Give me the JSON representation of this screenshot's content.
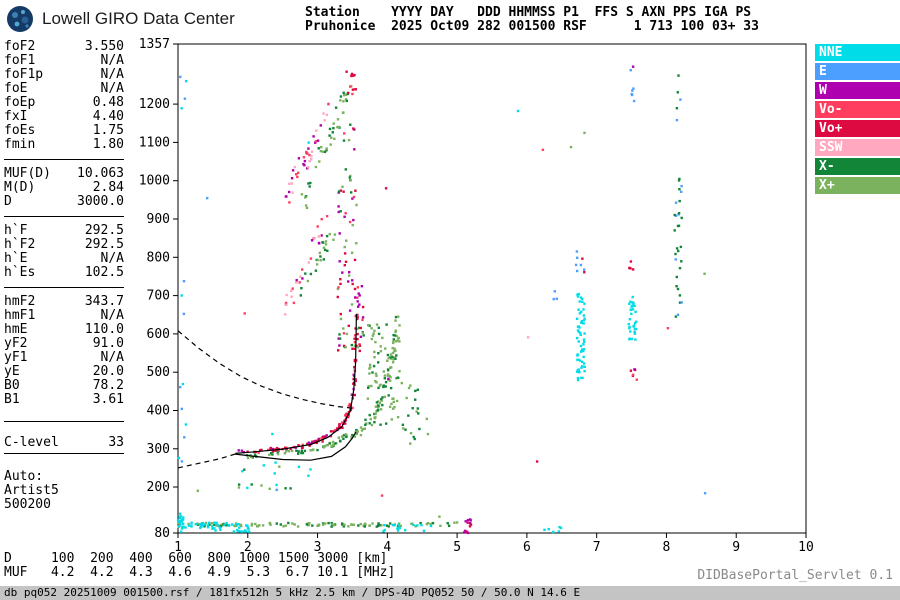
{
  "header": {
    "brand": "Lowell GIRO Data Center",
    "station_line1": "Station    YYYY DAY   DDD HHMMSS P1  FFS S AXN PPS IGA PS",
    "station_line2": "Pruhonice  2025 Oct09 282 001500 RSF      1 713 100 03+ 33"
  },
  "parameters": {
    "groups": [
      {
        "rows": [
          {
            "label": "foF2",
            "value": "3.550"
          },
          {
            "label": "foF1",
            "value": "N/A"
          },
          {
            "label": "foF1p",
            "value": "N/A"
          },
          {
            "label": "foE",
            "value": "N/A"
          },
          {
            "label": "foEp",
            "value": "0.48"
          },
          {
            "label": "fxI",
            "value": "4.40"
          },
          {
            "label": "foEs",
            "value": "1.75"
          },
          {
            "label": "fmin",
            "value": "1.80"
          }
        ]
      },
      {
        "rows": [
          {
            "label": "MUF(D)",
            "value": "10.063"
          },
          {
            "label": "M(D)",
            "value": "2.84"
          },
          {
            "label": "D",
            "value": "3000.0"
          }
        ]
      },
      {
        "rows": [
          {
            "label": "h`F",
            "value": "292.5"
          },
          {
            "label": "h`F2",
            "value": "292.5"
          },
          {
            "label": "h`E",
            "value": "N/A"
          },
          {
            "label": "h`Es",
            "value": "102.5"
          }
        ]
      },
      {
        "rows": [
          {
            "label": "hmF2",
            "value": "343.7"
          },
          {
            "label": "hmF1",
            "value": "N/A"
          },
          {
            "label": "hmE",
            "value": "110.0"
          },
          {
            "label": "yF2",
            "value": "91.0"
          },
          {
            "label": "yF1",
            "value": "N/A"
          },
          {
            "label": "yE",
            "value": "20.0"
          },
          {
            "label": "B0",
            "value": "78.2"
          },
          {
            "label": "B1",
            "value": "3.61"
          }
        ]
      },
      {
        "rows": [
          {
            "label": "C-level",
            "value": "33"
          }
        ],
        "bottom_line": true
      }
    ],
    "auto_block": [
      "Auto:",
      "Artist5",
      "500200"
    ]
  },
  "footer": {
    "d_row": "D     100  200  400  600  800 1000 1500 3000 [km]",
    "muf_row": "MUF   4.2  4.2  4.3  4.6  4.9  5.3  6.7 10.1 [MHz]",
    "servlet": "DIDBasePortal_Servlet 0.1",
    "status": "db pq052 20251009 001500.rsf / 181fx512h 5 kHz 2.5 km / DPS-4D PQ052 50 / 50.0 N 14.6 E"
  },
  "chart_data": {
    "type": "scatter",
    "title": "",
    "xlabel": "[MHz]",
    "ylabel": "[km]",
    "xlim": [
      1,
      10
    ],
    "ylim": [
      80,
      1357
    ],
    "x_ticks": [
      1,
      2,
      3,
      4,
      5,
      6,
      7,
      8,
      9,
      10
    ],
    "y_tick_labels": [
      1357,
      1200,
      1100,
      1000,
      900,
      800,
      700,
      600,
      500,
      400,
      300,
      200,
      80
    ],
    "grid": false,
    "legend_position": "top-right",
    "seed": 7,
    "colors": {
      "NNE": "#00DCE8",
      "E": "#4D9FFF",
      "W": "#AE00AE",
      "Vo-": "#FF3D5E",
      "Vo+": "#DC0A41",
      "SSW": "#FFA8C0",
      "X-": "#128539",
      "X+": "#7BB25E"
    },
    "legend": [
      "NNE",
      "E",
      "W",
      "Vo-",
      "Vo+",
      "SSW",
      "X-",
      "X+"
    ],
    "key_values": {
      "foF2_MHz": 3.55,
      "fxI_MHz": 4.4,
      "foEs_MHz": 1.75,
      "fmin_MHz": 1.8,
      "hmF2_km": 343.7,
      "hpF_km": 292.5,
      "hEs_km": 102.5
    },
    "echo_clusters": [
      {
        "name": "es-layer-green",
        "colors": [
          "X+",
          "X-",
          "X+"
        ],
        "along": [
          [
            1.0,
            101
          ],
          [
            2.2,
            102
          ],
          [
            3.4,
            101
          ],
          [
            5.0,
            103
          ]
        ],
        "jitter_h": 5,
        "jitter_f": 0.02,
        "n": 120
      },
      {
        "name": "es-layer-cyan-left",
        "colors": [
          "NNE"
        ],
        "f": [
          1.0,
          2.05
        ],
        "h": [
          82,
          108
        ],
        "n": 50
      },
      {
        "name": "es-cyan-mid",
        "colors": [
          "NNE"
        ],
        "f": [
          3.9,
          4.65
        ],
        "h": [
          84,
          102
        ],
        "n": 16
      },
      {
        "name": "es-cyan-right",
        "colors": [
          "NNE"
        ],
        "f": [
          6.25,
          6.5
        ],
        "h": [
          82,
          96
        ],
        "n": 6
      },
      {
        "name": "es-spike-magenta",
        "colors": [
          "W",
          "W",
          "Vo+"
        ],
        "f": [
          5.1,
          5.2
        ],
        "h": [
          80,
          118
        ],
        "n": 14
      },
      {
        "name": "es-second-hop",
        "colors": [
          "X+",
          "NNE",
          "X-"
        ],
        "f": [
          1.1,
          2.75
        ],
        "h": [
          188,
          216
        ],
        "n": 10
      },
      {
        "name": "f-trace-o",
        "colors": [
          "Vo+",
          "Vo+",
          "Vo+",
          "Vo-",
          "W"
        ],
        "along": [
          [
            1.85,
            291
          ],
          [
            2.2,
            294
          ],
          [
            2.6,
            301
          ],
          [
            2.9,
            312
          ],
          [
            3.1,
            327
          ],
          [
            3.3,
            352
          ],
          [
            3.42,
            382
          ],
          [
            3.5,
            425
          ],
          [
            3.53,
            470
          ],
          [
            3.548,
            540
          ],
          [
            3.553,
            610
          ],
          [
            3.556,
            655
          ]
        ],
        "jitter_h": 6,
        "jitter_f": 0.025,
        "n": 130
      },
      {
        "name": "f-trace-under-green",
        "colors": [
          "X+",
          "X-"
        ],
        "along": [
          [
            2.0,
            280
          ],
          [
            2.5,
            287
          ],
          [
            2.9,
            296
          ],
          [
            3.2,
            310
          ],
          [
            3.38,
            328
          ],
          [
            3.5,
            348
          ]
        ],
        "jitter_h": 6,
        "jitter_f": 0.03,
        "n": 55
      },
      {
        "name": "f-trace-x",
        "colors": [
          "X+",
          "X-",
          "X+"
        ],
        "along": [
          [
            3.5,
            335
          ],
          [
            3.65,
            352
          ],
          [
            3.8,
            382
          ],
          [
            3.9,
            418
          ],
          [
            4.0,
            468
          ],
          [
            4.07,
            528
          ],
          [
            4.12,
            588
          ],
          [
            4.16,
            645
          ]
        ],
        "jitter_h": 10,
        "jitter_f": 0.035,
        "n": 70
      },
      {
        "name": "x-spread-band",
        "colors": [
          "X+",
          "X-",
          "X+"
        ],
        "f": [
          3.72,
          4.18
        ],
        "h": [
          345,
          625
        ],
        "n": 85
      },
      {
        "name": "spread-right",
        "colors": [
          "X+",
          "X-"
        ],
        "f": [
          4.18,
          4.6
        ],
        "h": [
          300,
          480
        ],
        "n": 22
      },
      {
        "name": "second-hop-f",
        "colors": [
          "Vo+",
          "X+",
          "Vo-",
          "X-",
          "W"
        ],
        "f": [
          3.28,
          3.68
        ],
        "h": [
          555,
          725
        ],
        "n": 48
      },
      {
        "name": "streak-pink-upper",
        "colors": [
          "SSW",
          "Vo-",
          "W"
        ],
        "along": [
          [
            2.52,
            950
          ],
          [
            2.8,
            1040
          ],
          [
            3.0,
            1115
          ],
          [
            3.16,
            1190
          ]
        ],
        "jitter_h": 28,
        "jitter_f": 0.05,
        "n": 40
      },
      {
        "name": "streak-green-upper",
        "colors": [
          "X+",
          "X-"
        ],
        "along": [
          [
            2.82,
            950
          ],
          [
            3.05,
            1055
          ],
          [
            3.3,
            1165
          ],
          [
            3.46,
            1255
          ]
        ],
        "jitter_h": 30,
        "jitter_f": 0.05,
        "n": 42
      },
      {
        "name": "streak-magenta-mid",
        "colors": [
          "W",
          "SSW",
          "Vo-"
        ],
        "along": [
          [
            2.45,
            640
          ],
          [
            2.7,
            730
          ],
          [
            2.95,
            830
          ],
          [
            3.1,
            905
          ]
        ],
        "jitter_h": 24,
        "jitter_f": 0.05,
        "n": 28
      },
      {
        "name": "streak-green-mid",
        "colors": [
          "X+",
          "X-"
        ],
        "along": [
          [
            2.75,
            700
          ],
          [
            3.0,
            790
          ],
          [
            3.25,
            880
          ]
        ],
        "jitter_h": 24,
        "jitter_f": 0.05,
        "n": 24
      },
      {
        "name": "column-mixed-upper",
        "colors": [
          "Vo+",
          "X+",
          "W",
          "Vo-",
          "X-"
        ],
        "f": [
          3.3,
          3.56
        ],
        "h": [
          700,
          1160
        ],
        "n": 48
      },
      {
        "name": "top-red-cluster",
        "colors": [
          "Vo+",
          "Vo-"
        ],
        "f": [
          3.35,
          3.56
        ],
        "h": [
          1225,
          1300
        ],
        "n": 12
      },
      {
        "name": "rfi-675-cyan",
        "colors": [
          "NNE"
        ],
        "f": [
          6.72,
          6.83
        ],
        "h": [
          478,
          705
        ],
        "n": 60
      },
      {
        "name": "rfi-675-top",
        "colors": [
          "Vo+",
          "E"
        ],
        "f": [
          6.7,
          6.85
        ],
        "h": [
          755,
          820
        ],
        "n": 8
      },
      {
        "name": "rfi-75-cyan",
        "colors": [
          "NNE"
        ],
        "f": [
          7.46,
          7.57
        ],
        "h": [
          585,
          705
        ],
        "n": 32
      },
      {
        "name": "rfi-75-red",
        "colors": [
          "Vo+",
          "Vo-",
          "W"
        ],
        "f": [
          7.45,
          7.58
        ],
        "h": [
          478,
          520
        ],
        "n": 6
      },
      {
        "name": "rfi-75-high",
        "colors": [
          "E",
          "E",
          "W"
        ],
        "f": [
          7.48,
          7.57
        ],
        "h": [
          1195,
          1300
        ],
        "n": 7
      },
      {
        "name": "rfi-75-800",
        "colors": [
          "Vo+"
        ],
        "f": [
          7.46,
          7.53
        ],
        "h": [
          768,
          800
        ],
        "n": 4
      },
      {
        "name": "rfi-815-column",
        "colors": [
          "X-",
          "E",
          "X-"
        ],
        "f": [
          8.1,
          8.22
        ],
        "h": [
          640,
          1010
        ],
        "n": 30
      },
      {
        "name": "rfi-815-top",
        "colors": [
          "X-",
          "E"
        ],
        "f": [
          8.1,
          8.2
        ],
        "h": [
          1140,
          1280
        ],
        "n": 5
      },
      {
        "name": "left-edge-cyan",
        "colors": [
          "NNE"
        ],
        "f": [
          1.0,
          1.08
        ],
        "h": [
          82,
          132
        ],
        "n": 20
      },
      {
        "name": "left-edge-dots",
        "colors": [
          "NNE",
          "E"
        ],
        "f": [
          1.0,
          1.12
        ],
        "h": [
          180,
          740
        ],
        "n": 10
      },
      {
        "name": "left-edge-top",
        "colors": [
          "NNE",
          "E"
        ],
        "f": [
          1.0,
          1.14
        ],
        "h": [
          1180,
          1300
        ],
        "n": 4
      },
      {
        "name": "low-mid-dots",
        "colors": [
          "X+",
          "Vo+",
          "NNE",
          "X-"
        ],
        "f": [
          1.9,
          3.1
        ],
        "h": [
          228,
          268
        ],
        "n": 9
      },
      {
        "name": "dot-64",
        "colors": [
          "E"
        ],
        "f": [
          6.35,
          6.45
        ],
        "h": [
          688,
          712
        ],
        "n": 3
      },
      {
        "name": "sparse-misc",
        "colors": [
          "NNE",
          "E",
          "W",
          "Vo-",
          "Vo+",
          "SSW",
          "X-",
          "X+"
        ],
        "f": [
          1.3,
          8.8
        ],
        "h": [
          120,
          1310
        ],
        "n": 18
      }
    ],
    "profile_curves": [
      {
        "name": "muf3000-transmission-curve",
        "style": "dashed",
        "points": [
          [
            1.0,
            608
          ],
          [
            1.3,
            562
          ],
          [
            1.6,
            522
          ],
          [
            1.9,
            489
          ],
          [
            2.2,
            463
          ],
          [
            2.5,
            443
          ],
          [
            2.8,
            428
          ],
          [
            3.05,
            418
          ],
          [
            3.3,
            410
          ],
          [
            3.5,
            406
          ]
        ]
      },
      {
        "name": "sub-fmin-extrapolation",
        "style": "dashed",
        "points": [
          [
            1.0,
            250
          ],
          [
            1.3,
            262
          ],
          [
            1.6,
            274
          ],
          [
            1.82,
            286
          ]
        ]
      },
      {
        "name": "o-trace-fit",
        "style": "solid",
        "points": [
          [
            1.82,
            288
          ],
          [
            2.1,
            292
          ],
          [
            2.5,
            299
          ],
          [
            2.9,
            311
          ],
          [
            3.15,
            330
          ],
          [
            3.35,
            358
          ],
          [
            3.47,
            400
          ],
          [
            3.52,
            455
          ],
          [
            3.545,
            525
          ],
          [
            3.553,
            600
          ],
          [
            3.556,
            652
          ]
        ]
      },
      {
        "name": "true-height-profile",
        "style": "solid",
        "points": [
          [
            1.82,
            286
          ],
          [
            2.1,
            280
          ],
          [
            2.5,
            272
          ],
          [
            2.9,
            270
          ],
          [
            3.2,
            280
          ],
          [
            3.4,
            305
          ],
          [
            3.5,
            328
          ],
          [
            3.55,
            343.7
          ]
        ]
      }
    ]
  }
}
